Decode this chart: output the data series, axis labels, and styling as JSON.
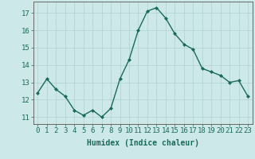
{
  "x": [
    0,
    1,
    2,
    3,
    4,
    5,
    6,
    7,
    8,
    9,
    10,
    11,
    12,
    13,
    14,
    15,
    16,
    17,
    18,
    19,
    20,
    21,
    22,
    23
  ],
  "y": [
    12.4,
    13.2,
    12.6,
    12.2,
    11.4,
    11.1,
    11.4,
    11.0,
    11.5,
    13.2,
    14.3,
    16.0,
    17.1,
    17.3,
    16.7,
    15.8,
    15.2,
    14.9,
    13.8,
    13.6,
    13.4,
    13.0,
    13.1,
    12.2
  ],
  "line_color": "#1a6b5a",
  "marker": "D",
  "marker_size": 2.0,
  "linewidth": 1.0,
  "xlabel": "Humidex (Indice chaleur)",
  "ylabel_ticks": [
    11,
    12,
    13,
    14,
    15,
    16,
    17
  ],
  "xtick_labels": [
    "0",
    "1",
    "2",
    "3",
    "4",
    "5",
    "6",
    "7",
    "8",
    "9",
    "10",
    "11",
    "12",
    "13",
    "14",
    "15",
    "16",
    "17",
    "18",
    "19",
    "20",
    "21",
    "22",
    "23"
  ],
  "xlim": [
    -0.5,
    23.5
  ],
  "ylim": [
    10.6,
    17.65
  ],
  "bg_color": "#cce8e8",
  "grid_color": "#b0d0d0",
  "xlabel_fontsize": 7,
  "tick_fontsize": 6.5
}
